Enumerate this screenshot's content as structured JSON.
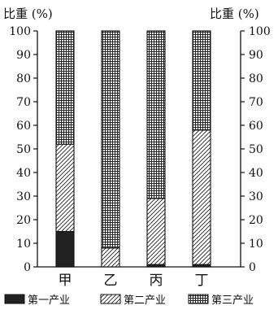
{
  "chart_data": {
    "type": "bar",
    "stacked": true,
    "categories": [
      "甲",
      "乙",
      "丙",
      "丁"
    ],
    "series": [
      {
        "name": "第一产业",
        "values": [
          15,
          0,
          1,
          1
        ],
        "pattern": "solid"
      },
      {
        "name": "第二产业",
        "values": [
          37,
          8,
          28,
          57
        ],
        "pattern": "diagonal"
      },
      {
        "name": "第三产业",
        "values": [
          48,
          92,
          71,
          42
        ],
        "pattern": "grid"
      }
    ],
    "ylabel_left": "比重 (%)",
    "ylabel_right": "比重 (%)",
    "ylim": [
      0,
      100
    ],
    "yticks": [
      0,
      10,
      20,
      30,
      40,
      50,
      60,
      70,
      80,
      90,
      100
    ],
    "legend_position": "bottom",
    "grid": false
  }
}
